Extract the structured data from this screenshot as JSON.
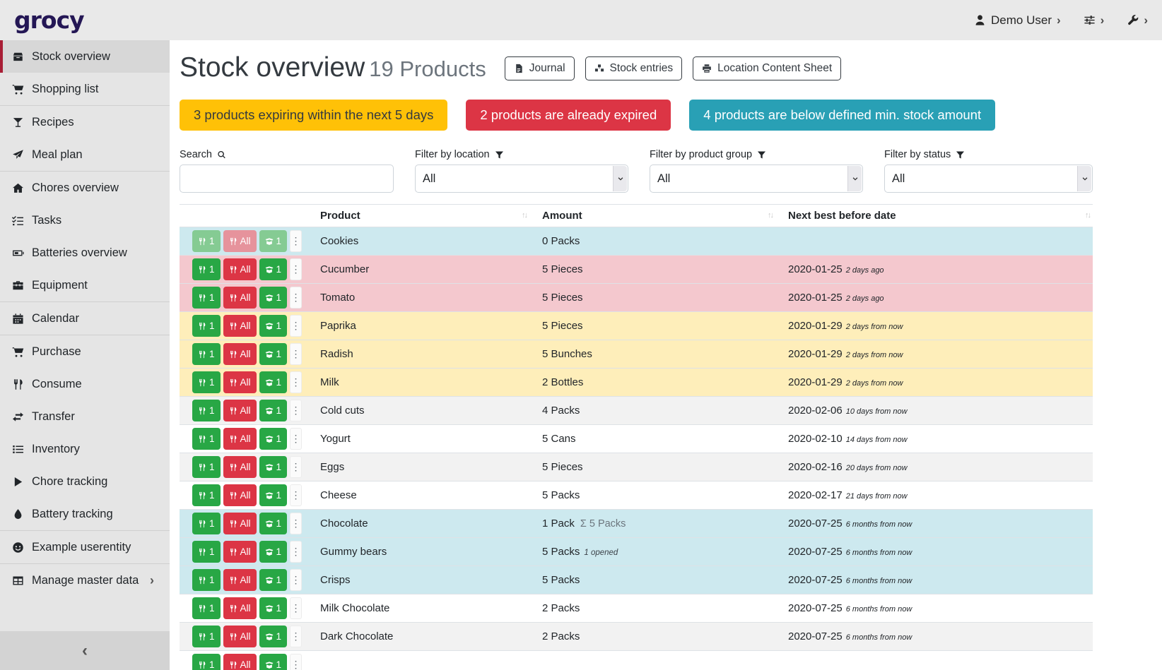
{
  "navbar": {
    "logo": "grocy",
    "user_label": "Demo User",
    "chevron": "›"
  },
  "sidebar": {
    "sections": [
      {
        "items": [
          {
            "label": "Stock overview",
            "icon": "box-icon",
            "active": true
          },
          {
            "label": "Shopping list",
            "icon": "shopping-cart-icon"
          }
        ]
      },
      {
        "items": [
          {
            "label": "Recipes",
            "icon": "cocktail-icon"
          },
          {
            "label": "Meal plan",
            "icon": "paper-plane-icon"
          }
        ]
      },
      {
        "items": [
          {
            "label": "Chores overview",
            "icon": "home-icon"
          },
          {
            "label": "Tasks",
            "icon": "tasks-icon"
          },
          {
            "label": "Batteries overview",
            "icon": "battery-icon"
          },
          {
            "label": "Equipment",
            "icon": "toolbox-icon"
          }
        ]
      },
      {
        "items": [
          {
            "label": "Calendar",
            "icon": "calendar-icon"
          }
        ]
      },
      {
        "items": [
          {
            "label": "Purchase",
            "icon": "shopping-cart-icon"
          },
          {
            "label": "Consume",
            "icon": "utensils-icon"
          },
          {
            "label": "Transfer",
            "icon": "exchange-icon"
          },
          {
            "label": "Inventory",
            "icon": "list-icon"
          },
          {
            "label": "Chore tracking",
            "icon": "play-icon"
          },
          {
            "label": "Battery tracking",
            "icon": "tint-icon"
          }
        ]
      },
      {
        "items": [
          {
            "label": "Example userentity",
            "icon": "smile-icon"
          }
        ]
      },
      {
        "items": [
          {
            "label": "Manage master data",
            "icon": "table-icon",
            "submenu": true
          }
        ]
      }
    ],
    "collapse_chevron": "‹"
  },
  "header": {
    "title": "Stock overview",
    "subtitle": "19 Products",
    "buttons": [
      {
        "label": "Journal",
        "icon": "file-icon"
      },
      {
        "label": "Stock entries",
        "icon": "cubes-icon"
      },
      {
        "label": "Location Content Sheet",
        "icon": "print-icon"
      }
    ]
  },
  "banners": [
    {
      "text": "3 products expiring within the next 5 days",
      "bg": "#ffc107",
      "fg": "#343a40"
    },
    {
      "text": "2 products are already expired",
      "bg": "#dc3545",
      "fg": "#ffffff"
    },
    {
      "text": "4 products are below defined min. stock amount",
      "bg": "#29a0b5",
      "fg": "#ffffff"
    }
  ],
  "filters": {
    "search": {
      "label": "Search",
      "value": "",
      "placeholder": ""
    },
    "location": {
      "label": "Filter by location",
      "value": "All"
    },
    "product_group": {
      "label": "Filter by product group",
      "value": "All"
    },
    "status": {
      "label": "Filter by status",
      "value": "All"
    }
  },
  "table": {
    "columns": [
      "Product",
      "Amount",
      "Next best before date"
    ],
    "row_buttons": {
      "consume_one": "1",
      "consume_all": "All",
      "open_one": "1"
    },
    "status_colors": {
      "belowmin": "#cde9ef",
      "expired": "#f4c8ce",
      "expiring": "#feeeba",
      "stripe": "#f2f2f2"
    },
    "rows": [
      {
        "product": "Cookies",
        "amount": "0 Packs",
        "note": "",
        "note_kind": "",
        "date": "",
        "ago": "",
        "status": "belowmin",
        "muted": true
      },
      {
        "product": "Cucumber",
        "amount": "5 Pieces",
        "note": "",
        "note_kind": "",
        "date": "2020-01-25",
        "ago": "2 days ago",
        "status": "expired",
        "muted": false
      },
      {
        "product": "Tomato",
        "amount": "5 Pieces",
        "note": "",
        "note_kind": "",
        "date": "2020-01-25",
        "ago": "2 days ago",
        "status": "expired",
        "muted": false
      },
      {
        "product": "Paprika",
        "amount": "5 Pieces",
        "note": "",
        "note_kind": "",
        "date": "2020-01-29",
        "ago": "2 days from now",
        "status": "expiring",
        "muted": false
      },
      {
        "product": "Radish",
        "amount": "5 Bunches",
        "note": "",
        "note_kind": "",
        "date": "2020-01-29",
        "ago": "2 days from now",
        "status": "expiring",
        "muted": false
      },
      {
        "product": "Milk",
        "amount": "2 Bottles",
        "note": "",
        "note_kind": "",
        "date": "2020-01-29",
        "ago": "2 days from now",
        "status": "expiring",
        "muted": false
      },
      {
        "product": "Cold cuts",
        "amount": "4 Packs",
        "note": "",
        "note_kind": "",
        "date": "2020-02-06",
        "ago": "10 days from now",
        "status": "none",
        "muted": false
      },
      {
        "product": "Yogurt",
        "amount": "5 Cans",
        "note": "",
        "note_kind": "",
        "date": "2020-02-10",
        "ago": "14 days from now",
        "status": "none",
        "muted": false
      },
      {
        "product": "Eggs",
        "amount": "5 Pieces",
        "note": "",
        "note_kind": "",
        "date": "2020-02-16",
        "ago": "20 days from now",
        "status": "none",
        "muted": false
      },
      {
        "product": "Cheese",
        "amount": "5 Packs",
        "note": "",
        "note_kind": "",
        "date": "2020-02-17",
        "ago": "21 days from now",
        "status": "none",
        "muted": false
      },
      {
        "product": "Chocolate",
        "amount": "1 Pack",
        "note": "Σ 5 Packs",
        "note_kind": "sum",
        "date": "2020-07-25",
        "ago": "6 months from now",
        "status": "belowmin",
        "muted": false
      },
      {
        "product": "Gummy bears",
        "amount": "5 Packs",
        "note": "1 opened",
        "note_kind": "opened",
        "date": "2020-07-25",
        "ago": "6 months from now",
        "status": "belowmin",
        "muted": false
      },
      {
        "product": "Crisps",
        "amount": "5 Packs",
        "note": "",
        "note_kind": "",
        "date": "2020-07-25",
        "ago": "6 months from now",
        "status": "belowmin",
        "muted": false
      },
      {
        "product": "Milk Chocolate",
        "amount": "2 Packs",
        "note": "",
        "note_kind": "",
        "date": "2020-07-25",
        "ago": "6 months from now",
        "status": "none",
        "muted": false
      },
      {
        "product": "Dark Chocolate",
        "amount": "2 Packs",
        "note": "",
        "note_kind": "",
        "date": "2020-07-25",
        "ago": "6 months from now",
        "status": "none",
        "muted": false
      },
      {
        "product": "",
        "amount": "",
        "note": "",
        "note_kind": "",
        "date": "",
        "ago": "",
        "status": "none",
        "muted": false
      }
    ]
  }
}
